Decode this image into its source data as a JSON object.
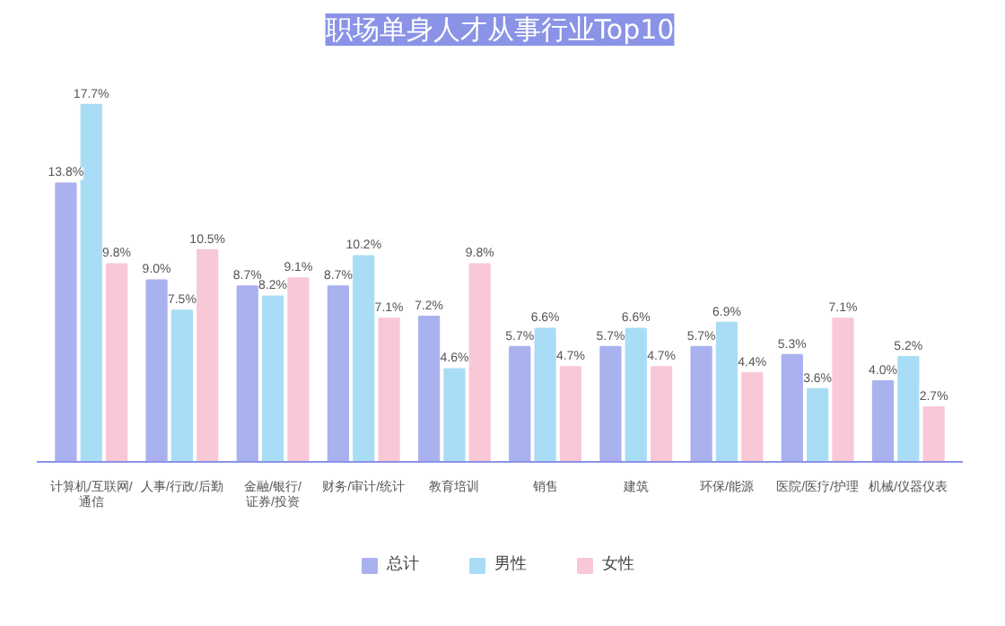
{
  "chart_data": {
    "type": "bar",
    "title": "职场单身人才从事行业Top10",
    "categories": [
      "计算机/互联网/\n通信",
      "人事/行政/后勤",
      "金融/银行/\n证券/投资",
      "财务/审计/统计",
      "教育培训",
      "销售",
      "建筑",
      "环保/能源",
      "医院/医疗/护理",
      "机械/仪器仪表"
    ],
    "series": [
      {
        "name": "总计",
        "color": "#aab1ef",
        "values": [
          13.8,
          9.0,
          8.7,
          8.7,
          7.2,
          5.7,
          5.7,
          5.7,
          5.3,
          4.0
        ],
        "value_labels": [
          "13.8%",
          "9.0%",
          "8.7%",
          "8.7%",
          "7.2%",
          "5.7%",
          "5.7%",
          "5.7%",
          "5.3%",
          "4.0%"
        ]
      },
      {
        "name": "男性",
        "color": "#a9ddf6",
        "values": [
          17.7,
          7.5,
          8.2,
          10.2,
          4.6,
          6.6,
          6.6,
          6.9,
          3.6,
          5.2
        ],
        "value_labels": [
          "17.7%",
          "7.5%",
          "8.2%",
          "10.2%",
          "4.6%",
          "6.6%",
          "6.6%",
          "6.9%",
          "3.6%",
          "5.2%"
        ]
      },
      {
        "name": "女性",
        "color": "#f9c8d6",
        "values": [
          9.8,
          10.5,
          9.1,
          7.1,
          9.8,
          4.7,
          4.7,
          4.4,
          7.1,
          2.7
        ],
        "value_labels": [
          "9.8%",
          "10.5%",
          "9.1%",
          "7.1%",
          "9.8%",
          "4.7%",
          "4.7%",
          "4.4%",
          "7.1%",
          "2.7%"
        ]
      }
    ],
    "legend": "bottom"
  }
}
